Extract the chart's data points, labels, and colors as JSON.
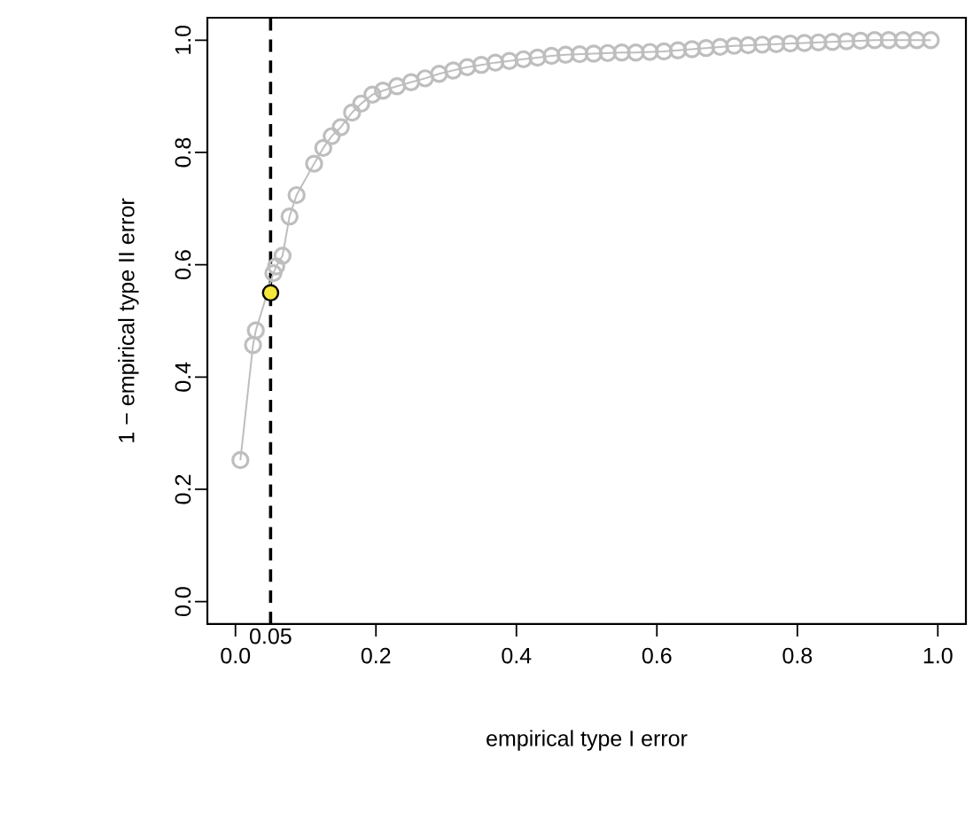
{
  "chart_data": {
    "type": "line",
    "xlabel": "empirical type I error",
    "ylabel": "1 − empirical type II error",
    "xlim": [
      -0.04,
      1.04
    ],
    "ylim": [
      -0.04,
      1.04
    ],
    "xticks": [
      {
        "value": 0,
        "label": "0.0"
      },
      {
        "value": 0.2,
        "label": "0.2"
      },
      {
        "value": 0.4,
        "label": "0.4"
      },
      {
        "value": 0.6,
        "label": "0.6"
      },
      {
        "value": 0.8,
        "label": "0.8"
      },
      {
        "value": 1.0,
        "label": "1.0"
      }
    ],
    "yticks": [
      {
        "value": 0,
        "label": "0.0"
      },
      {
        "value": 0.2,
        "label": "0.2"
      },
      {
        "value": 0.4,
        "label": "0.4"
      },
      {
        "value": 0.6,
        "label": "0.6"
      },
      {
        "value": 0.8,
        "label": "0.8"
      },
      {
        "value": 1.0,
        "label": "1.0"
      }
    ],
    "marker": "circle",
    "line_style": "solid",
    "ref_lines": [
      {
        "axis": "x",
        "value": 0.05,
        "label": "0.05",
        "color": "#000000",
        "line_style": "dashed"
      }
    ],
    "series": [
      {
        "color": "#bebebe",
        "x": [
          0.007,
          0.025,
          0.029,
          0.054,
          0.058,
          0.067,
          0.077,
          0.087,
          0.112,
          0.125,
          0.137,
          0.15,
          0.166,
          0.179,
          0.195,
          0.21,
          0.23,
          0.25,
          0.27,
          0.29,
          0.31,
          0.33,
          0.35,
          0.37,
          0.39,
          0.41,
          0.43,
          0.45,
          0.47,
          0.49,
          0.51,
          0.53,
          0.55,
          0.57,
          0.59,
          0.61,
          0.63,
          0.65,
          0.67,
          0.69,
          0.71,
          0.73,
          0.75,
          0.77,
          0.79,
          0.81,
          0.83,
          0.85,
          0.87,
          0.89,
          0.91,
          0.93,
          0.95,
          0.97,
          0.99
        ],
        "values": [
          0.252,
          0.457,
          0.483,
          0.585,
          0.597,
          0.616,
          0.686,
          0.724,
          0.78,
          0.808,
          0.829,
          0.845,
          0.871,
          0.887,
          0.903,
          0.91,
          0.918,
          0.925,
          0.932,
          0.94,
          0.946,
          0.952,
          0.956,
          0.96,
          0.963,
          0.966,
          0.969,
          0.972,
          0.974,
          0.975,
          0.976,
          0.977,
          0.978,
          0.978,
          0.979,
          0.98,
          0.982,
          0.984,
          0.986,
          0.988,
          0.99,
          0.991,
          0.992,
          0.993,
          0.994,
          0.995,
          0.996,
          0.997,
          0.998,
          0.999,
          1.0,
          1.0,
          1.0,
          1.0,
          1.0
        ]
      },
      {
        "type": "scatter",
        "color": "#f5e63c",
        "x": [
          0.05
        ],
        "values": [
          0.55
        ]
      }
    ]
  }
}
